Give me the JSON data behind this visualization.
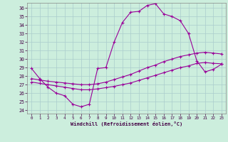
{
  "background_color": "#cceedd",
  "grid_color": "#aacccc",
  "line_color": "#990099",
  "xlim": [
    -0.5,
    23.5
  ],
  "ylim": [
    23.6,
    36.6
  ],
  "ytick_vals": [
    24,
    25,
    26,
    27,
    28,
    29,
    30,
    31,
    32,
    33,
    34,
    35,
    36
  ],
  "xtick_vals": [
    0,
    1,
    2,
    3,
    4,
    5,
    6,
    7,
    8,
    9,
    10,
    11,
    12,
    13,
    14,
    15,
    16,
    17,
    18,
    19,
    20,
    21,
    22,
    23
  ],
  "xlabel": "Windchill (Refroidissement éolien,°C)",
  "curve_main": [
    28.9,
    27.7,
    26.7,
    26.0,
    25.7,
    24.7,
    24.4,
    24.7,
    28.9,
    29.0,
    32.0,
    34.3,
    35.5,
    35.6,
    36.3,
    36.5,
    35.3,
    35.0,
    34.5,
    33.0,
    29.8,
    28.5,
    28.8,
    29.4
  ],
  "curve_line1": [
    27.3,
    27.15,
    27.0,
    26.85,
    26.7,
    26.55,
    26.4,
    26.4,
    26.5,
    26.65,
    26.8,
    27.0,
    27.2,
    27.5,
    27.8,
    28.1,
    28.4,
    28.7,
    29.0,
    29.2,
    29.5,
    29.6,
    29.5,
    29.45
  ],
  "curve_line2": [
    27.7,
    27.55,
    27.4,
    27.3,
    27.2,
    27.1,
    27.0,
    27.0,
    27.1,
    27.3,
    27.6,
    27.9,
    28.2,
    28.6,
    29.0,
    29.3,
    29.7,
    30.0,
    30.3,
    30.5,
    30.7,
    30.8,
    30.7,
    30.6
  ]
}
